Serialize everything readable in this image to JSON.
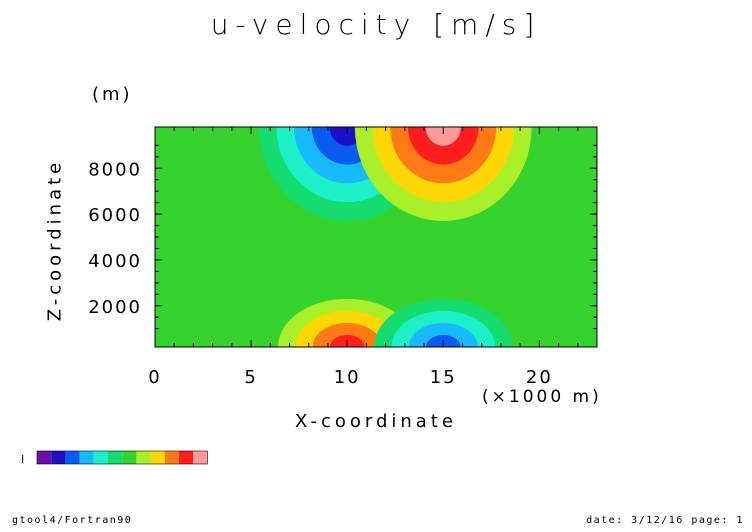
{
  "chart_data": {
    "type": "heatmap",
    "title": "u-velocity [m/s]",
    "xlabel": "X-coordinate",
    "xunit": "(×1000 m)",
    "ylabel": "Z-coordinate",
    "yunit": "(m)",
    "xlim": [
      0,
      23
    ],
    "ylim": [
      200,
      9800
    ],
    "xticks": [
      0,
      5,
      10,
      15,
      20
    ],
    "xtick_labels": [
      "0",
      "5",
      "10",
      "15",
      "20"
    ],
    "yticks": [
      2000,
      4000,
      6000,
      8000
    ],
    "ytick_labels": [
      "2000",
      "4000",
      "6000",
      "8000"
    ],
    "colorbar_colors": [
      "#6a0fa8",
      "#1b0fc8",
      "#0a5cf0",
      "#17b9ff",
      "#1df0c8",
      "#14dc6e",
      "#36d22e",
      "#aaf02a",
      "#fcd705",
      "#ff7a14",
      "#ff1e1e",
      "#ff9a9a"
    ],
    "colorbar_tick": "I",
    "background_level_color": "#36d22e",
    "features": [
      {
        "name": "upper negative lobe",
        "x": 10,
        "z": 9800,
        "rx": 4.6,
        "rz": 4100,
        "peak_level": 1
      },
      {
        "name": "upper positive lobe",
        "x": 15,
        "z": 9800,
        "rx": 4.6,
        "rz": 4100,
        "peak_level": 11
      },
      {
        "name": "lower positive lobe",
        "x": 10,
        "z": 200,
        "rx": 3.6,
        "rz": 2100,
        "peak_level": 10
      },
      {
        "name": "lower negative lobe",
        "x": 15,
        "z": 200,
        "rx": 3.6,
        "rz": 2100,
        "peak_level": 2
      }
    ]
  },
  "footer": {
    "left": "gtool4/Fortran90",
    "right": "date: 3/12/16 page: 1"
  }
}
